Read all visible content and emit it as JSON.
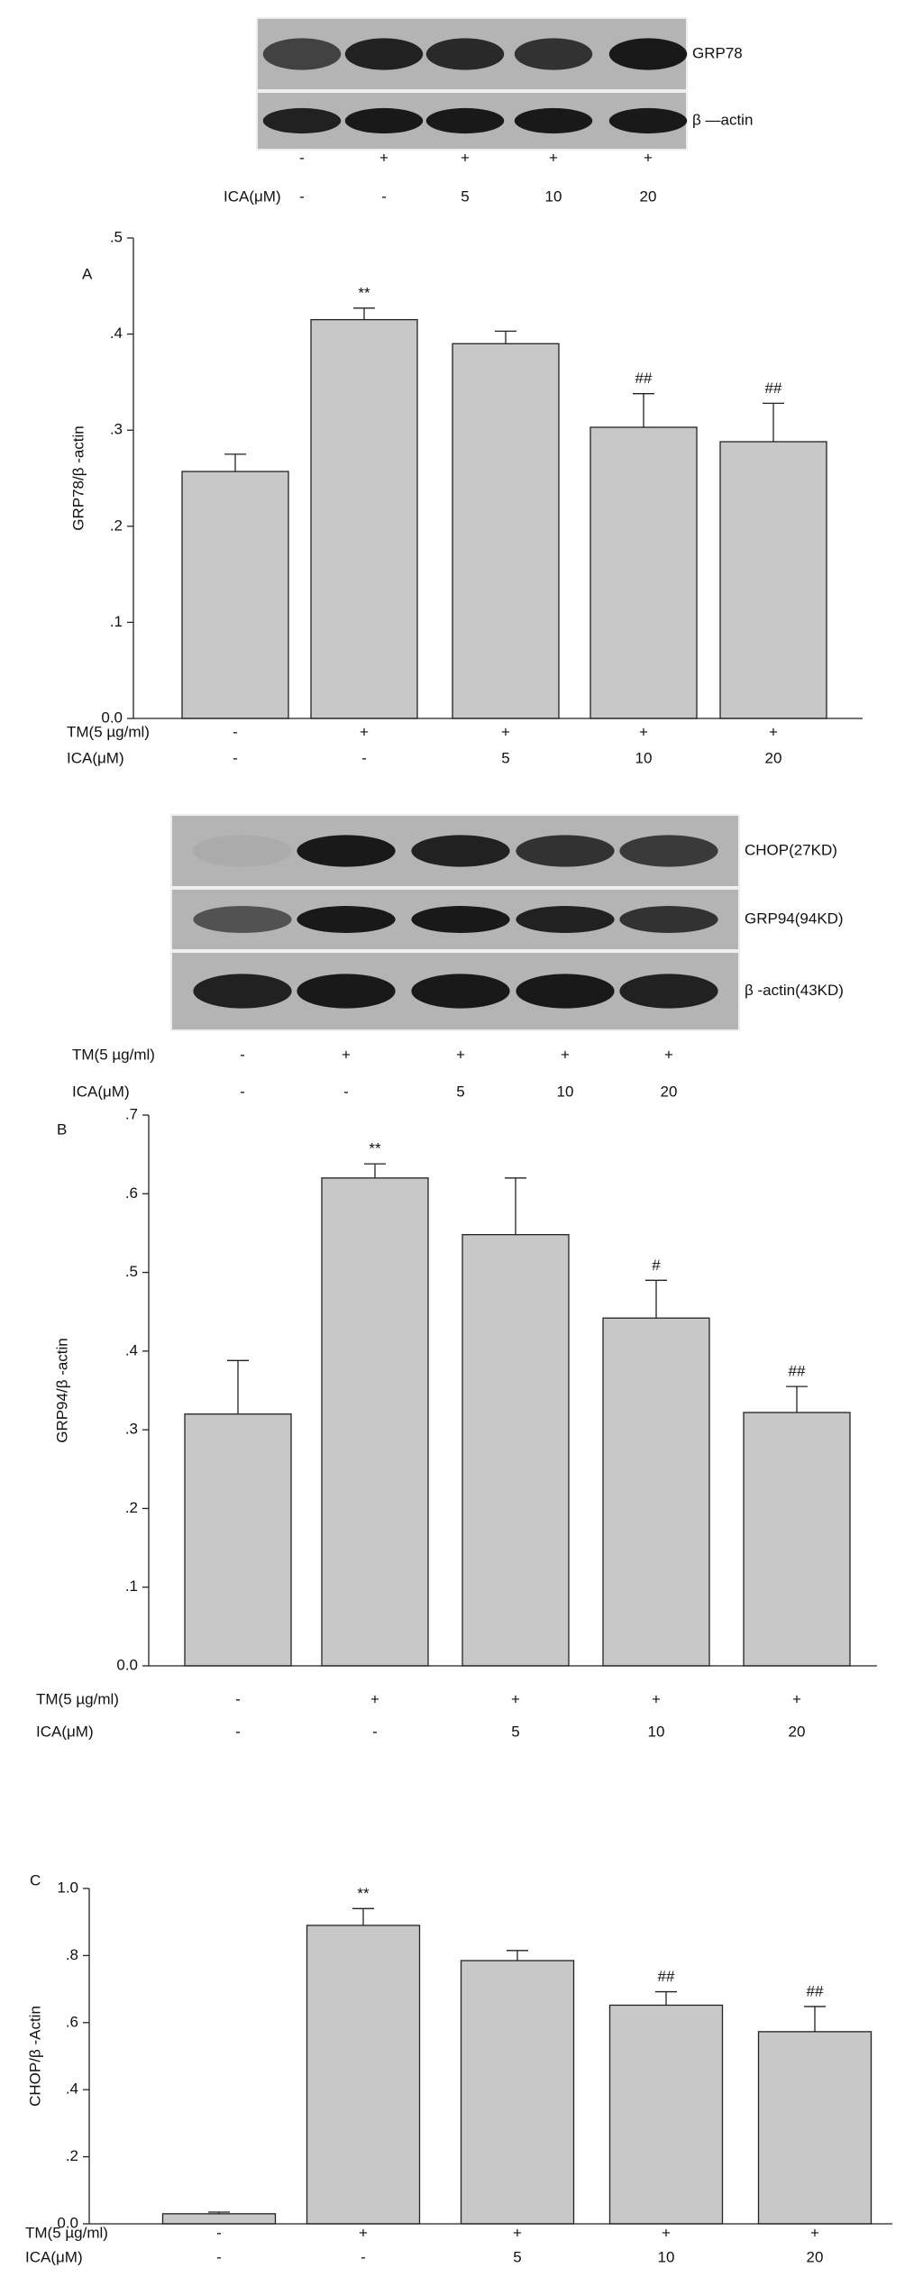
{
  "blots": [
    {
      "labels": [
        "GRP78",
        "β —actin"
      ],
      "treatments": [
        {
          "values": [
            "-",
            "+",
            "+",
            "+",
            "+"
          ]
        },
        {
          "label": "ICA(μM)",
          "values": [
            "-",
            "-",
            "5",
            "10",
            "20"
          ]
        }
      ]
    },
    {
      "labels": [
        "CHOP(27KD)",
        "GRP94(94KD)",
        "β -actin(43KD)"
      ],
      "treatments": [
        {
          "label": "TM(5 µg/ml)",
          "values": [
            "-",
            "+",
            "+",
            "+",
            "+"
          ]
        },
        {
          "label": "ICA(μM)",
          "values": [
            "-",
            "-",
            "5",
            "10",
            "20"
          ]
        }
      ]
    }
  ],
  "chart_data": [
    {
      "type": "bar",
      "panel": "A",
      "ylabel": "GRP78/β -actin",
      "color": "#c8c8c8",
      "values": [
        0.257,
        0.415,
        0.39,
        0.303,
        0.288
      ],
      "errors": [
        0.018,
        0.012,
        0.013,
        0.035,
        0.04
      ],
      "annotations": [
        null,
        "**",
        null,
        "##",
        "##"
      ],
      "ylim": [
        0,
        0.5
      ],
      "yticks": [
        {
          "value": 0,
          "label": "0.0"
        },
        {
          "value": 0.1,
          "label": ".1"
        },
        {
          "value": 0.2,
          "label": ".2"
        },
        {
          "value": 0.3,
          "label": ".3"
        },
        {
          "value": 0.4,
          "label": ".4"
        },
        {
          "value": 0.5,
          "label": ".5"
        }
      ],
      "treatments": [
        {
          "label": "TM(5 µg/ml)",
          "values": [
            "-",
            "+",
            "+",
            "+",
            "+"
          ]
        },
        {
          "label": "ICA(μM)",
          "values": [
            "-",
            "-",
            "5",
            "10",
            "20"
          ]
        }
      ]
    },
    {
      "type": "bar",
      "panel": "B",
      "ylabel": "GRP94/β -actin",
      "color": "#c8c8c8",
      "values": [
        0.32,
        0.62,
        0.548,
        0.442,
        0.322
      ],
      "errors": [
        0.068,
        0.018,
        0.072,
        0.048,
        0.033
      ],
      "annotations": [
        null,
        "**",
        null,
        "#",
        "##"
      ],
      "ylim": [
        0,
        0.7
      ],
      "yticks": [
        {
          "value": 0,
          "label": "0.0"
        },
        {
          "value": 0.1,
          "label": ".1"
        },
        {
          "value": 0.2,
          "label": ".2"
        },
        {
          "value": 0.3,
          "label": ".3"
        },
        {
          "value": 0.4,
          "label": ".4"
        },
        {
          "value": 0.5,
          "label": ".5"
        },
        {
          "value": 0.6,
          "label": ".6"
        },
        {
          "value": 0.7,
          "label": ".7"
        }
      ],
      "treatments": [
        {
          "label": "TM(5 µg/ml)",
          "values": [
            "-",
            "+",
            "+",
            "+",
            "+"
          ]
        },
        {
          "label": "ICA(μM)",
          "values": [
            "-",
            "-",
            "5",
            "10",
            "20"
          ]
        }
      ]
    },
    {
      "type": "bar",
      "panel": "C",
      "ylabel": "CHOP/β -Actin",
      "color": "#c8c8c8",
      "values": [
        0.03,
        0.89,
        0.785,
        0.652,
        0.573
      ],
      "errors": [
        0.005,
        0.05,
        0.03,
        0.04,
        0.075
      ],
      "annotations": [
        null,
        "**",
        null,
        "##",
        "##"
      ],
      "ylim": [
        0,
        1.0
      ],
      "yticks": [
        {
          "value": 0,
          "label": "0.0"
        },
        {
          "value": 0.2,
          "label": ".2"
        },
        {
          "value": 0.4,
          "label": ".4"
        },
        {
          "value": 0.6,
          "label": ".6"
        },
        {
          "value": 0.8,
          "label": ".8"
        },
        {
          "value": 1.0,
          "label": "1.0"
        }
      ],
      "treatments": [
        {
          "label": "TM(5 µg/ml)",
          "values": [
            "-",
            "+",
            "+",
            "+",
            "+"
          ]
        },
        {
          "label": "ICA(μM)",
          "values": [
            "-",
            "-",
            "5",
            "10",
            "20"
          ]
        }
      ]
    }
  ]
}
